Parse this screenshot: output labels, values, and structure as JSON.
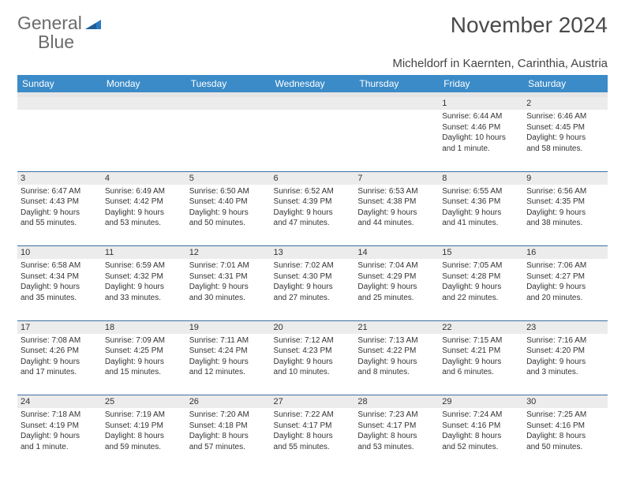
{
  "logo": {
    "word1": "General",
    "word2": "Blue",
    "text_color": "#6b6b6b",
    "accent_color": "#2c7ac1"
  },
  "title": "November 2024",
  "subtitle": "Micheldorf in Kaernten, Carinthia, Austria",
  "colors": {
    "header_bg": "#3b8bc8",
    "header_text": "#ffffff",
    "daynum_bg": "#ececec",
    "rule": "#3b6fa0",
    "body_text": "#333333",
    "background": "#ffffff"
  },
  "typography": {
    "title_fontsize": 28,
    "subtitle_fontsize": 15,
    "header_fontsize": 12,
    "daynum_fontsize": 11,
    "cell_fontsize": 10
  },
  "day_labels": [
    "Sunday",
    "Monday",
    "Tuesday",
    "Wednesday",
    "Thursday",
    "Friday",
    "Saturday"
  ],
  "weeks": [
    {
      "nums": [
        "",
        "",
        "",
        "",
        "",
        "1",
        "2"
      ],
      "cells": [
        null,
        null,
        null,
        null,
        null,
        {
          "sunrise": "Sunrise: 6:44 AM",
          "sunset": "Sunset: 4:46 PM",
          "day1": "Daylight: 10 hours",
          "day2": "and 1 minute."
        },
        {
          "sunrise": "Sunrise: 6:46 AM",
          "sunset": "Sunset: 4:45 PM",
          "day1": "Daylight: 9 hours",
          "day2": "and 58 minutes."
        }
      ]
    },
    {
      "nums": [
        "3",
        "4",
        "5",
        "6",
        "7",
        "8",
        "9"
      ],
      "cells": [
        {
          "sunrise": "Sunrise: 6:47 AM",
          "sunset": "Sunset: 4:43 PM",
          "day1": "Daylight: 9 hours",
          "day2": "and 55 minutes."
        },
        {
          "sunrise": "Sunrise: 6:49 AM",
          "sunset": "Sunset: 4:42 PM",
          "day1": "Daylight: 9 hours",
          "day2": "and 53 minutes."
        },
        {
          "sunrise": "Sunrise: 6:50 AM",
          "sunset": "Sunset: 4:40 PM",
          "day1": "Daylight: 9 hours",
          "day2": "and 50 minutes."
        },
        {
          "sunrise": "Sunrise: 6:52 AM",
          "sunset": "Sunset: 4:39 PM",
          "day1": "Daylight: 9 hours",
          "day2": "and 47 minutes."
        },
        {
          "sunrise": "Sunrise: 6:53 AM",
          "sunset": "Sunset: 4:38 PM",
          "day1": "Daylight: 9 hours",
          "day2": "and 44 minutes."
        },
        {
          "sunrise": "Sunrise: 6:55 AM",
          "sunset": "Sunset: 4:36 PM",
          "day1": "Daylight: 9 hours",
          "day2": "and 41 minutes."
        },
        {
          "sunrise": "Sunrise: 6:56 AM",
          "sunset": "Sunset: 4:35 PM",
          "day1": "Daylight: 9 hours",
          "day2": "and 38 minutes."
        }
      ]
    },
    {
      "nums": [
        "10",
        "11",
        "12",
        "13",
        "14",
        "15",
        "16"
      ],
      "cells": [
        {
          "sunrise": "Sunrise: 6:58 AM",
          "sunset": "Sunset: 4:34 PM",
          "day1": "Daylight: 9 hours",
          "day2": "and 35 minutes."
        },
        {
          "sunrise": "Sunrise: 6:59 AM",
          "sunset": "Sunset: 4:32 PM",
          "day1": "Daylight: 9 hours",
          "day2": "and 33 minutes."
        },
        {
          "sunrise": "Sunrise: 7:01 AM",
          "sunset": "Sunset: 4:31 PM",
          "day1": "Daylight: 9 hours",
          "day2": "and 30 minutes."
        },
        {
          "sunrise": "Sunrise: 7:02 AM",
          "sunset": "Sunset: 4:30 PM",
          "day1": "Daylight: 9 hours",
          "day2": "and 27 minutes."
        },
        {
          "sunrise": "Sunrise: 7:04 AM",
          "sunset": "Sunset: 4:29 PM",
          "day1": "Daylight: 9 hours",
          "day2": "and 25 minutes."
        },
        {
          "sunrise": "Sunrise: 7:05 AM",
          "sunset": "Sunset: 4:28 PM",
          "day1": "Daylight: 9 hours",
          "day2": "and 22 minutes."
        },
        {
          "sunrise": "Sunrise: 7:06 AM",
          "sunset": "Sunset: 4:27 PM",
          "day1": "Daylight: 9 hours",
          "day2": "and 20 minutes."
        }
      ]
    },
    {
      "nums": [
        "17",
        "18",
        "19",
        "20",
        "21",
        "22",
        "23"
      ],
      "cells": [
        {
          "sunrise": "Sunrise: 7:08 AM",
          "sunset": "Sunset: 4:26 PM",
          "day1": "Daylight: 9 hours",
          "day2": "and 17 minutes."
        },
        {
          "sunrise": "Sunrise: 7:09 AM",
          "sunset": "Sunset: 4:25 PM",
          "day1": "Daylight: 9 hours",
          "day2": "and 15 minutes."
        },
        {
          "sunrise": "Sunrise: 7:11 AM",
          "sunset": "Sunset: 4:24 PM",
          "day1": "Daylight: 9 hours",
          "day2": "and 12 minutes."
        },
        {
          "sunrise": "Sunrise: 7:12 AM",
          "sunset": "Sunset: 4:23 PM",
          "day1": "Daylight: 9 hours",
          "day2": "and 10 minutes."
        },
        {
          "sunrise": "Sunrise: 7:13 AM",
          "sunset": "Sunset: 4:22 PM",
          "day1": "Daylight: 9 hours",
          "day2": "and 8 minutes."
        },
        {
          "sunrise": "Sunrise: 7:15 AM",
          "sunset": "Sunset: 4:21 PM",
          "day1": "Daylight: 9 hours",
          "day2": "and 6 minutes."
        },
        {
          "sunrise": "Sunrise: 7:16 AM",
          "sunset": "Sunset: 4:20 PM",
          "day1": "Daylight: 9 hours",
          "day2": "and 3 minutes."
        }
      ]
    },
    {
      "nums": [
        "24",
        "25",
        "26",
        "27",
        "28",
        "29",
        "30"
      ],
      "cells": [
        {
          "sunrise": "Sunrise: 7:18 AM",
          "sunset": "Sunset: 4:19 PM",
          "day1": "Daylight: 9 hours",
          "day2": "and 1 minute."
        },
        {
          "sunrise": "Sunrise: 7:19 AM",
          "sunset": "Sunset: 4:19 PM",
          "day1": "Daylight: 8 hours",
          "day2": "and 59 minutes."
        },
        {
          "sunrise": "Sunrise: 7:20 AM",
          "sunset": "Sunset: 4:18 PM",
          "day1": "Daylight: 8 hours",
          "day2": "and 57 minutes."
        },
        {
          "sunrise": "Sunrise: 7:22 AM",
          "sunset": "Sunset: 4:17 PM",
          "day1": "Daylight: 8 hours",
          "day2": "and 55 minutes."
        },
        {
          "sunrise": "Sunrise: 7:23 AM",
          "sunset": "Sunset: 4:17 PM",
          "day1": "Daylight: 8 hours",
          "day2": "and 53 minutes."
        },
        {
          "sunrise": "Sunrise: 7:24 AM",
          "sunset": "Sunset: 4:16 PM",
          "day1": "Daylight: 8 hours",
          "day2": "and 52 minutes."
        },
        {
          "sunrise": "Sunrise: 7:25 AM",
          "sunset": "Sunset: 4:16 PM",
          "day1": "Daylight: 8 hours",
          "day2": "and 50 minutes."
        }
      ]
    }
  ]
}
